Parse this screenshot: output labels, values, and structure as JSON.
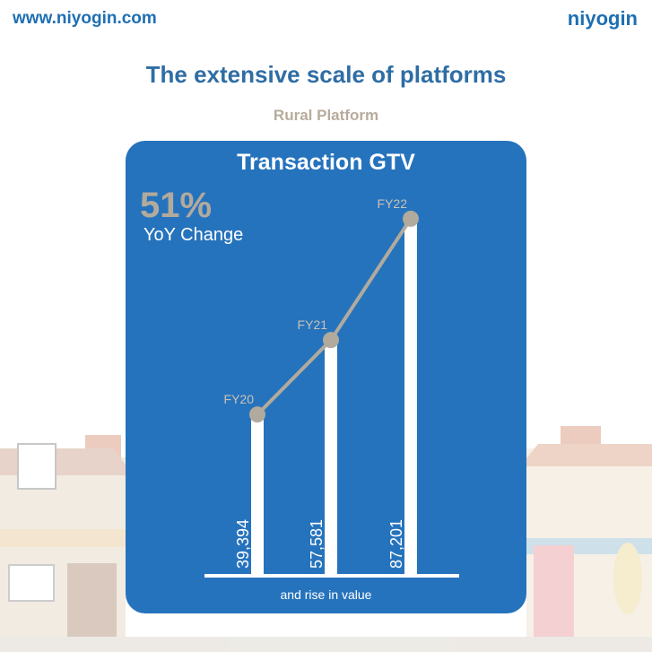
{
  "header": {
    "url": "www.niyogin.com",
    "logo": "niyogin",
    "title": "The extensive scale of platforms",
    "subtitle": "Rural Platform"
  },
  "colors": {
    "brand_blue": "#1e6fb3",
    "card_blue": "#2673bd",
    "line_gray": "#b2aa9d",
    "bar_white": "#ffffff"
  },
  "card": {
    "title": "Transaction GTV",
    "kpi_value": "51%",
    "kpi_label": "YoY Change",
    "footnote": "and rise in value"
  },
  "chart_data": {
    "type": "bar",
    "title": "Transaction GTV",
    "categories": [
      "FY20",
      "FY21",
      "FY22"
    ],
    "series": [
      {
        "values": [
          39394,
          57581,
          87201
        ]
      }
    ],
    "value_labels": [
      "39,394",
      "57,581",
      "87,201"
    ],
    "overlay": "line connecting bar tops",
    "ylim": [
      0,
      92000
    ],
    "grid": false,
    "legend": "none"
  }
}
